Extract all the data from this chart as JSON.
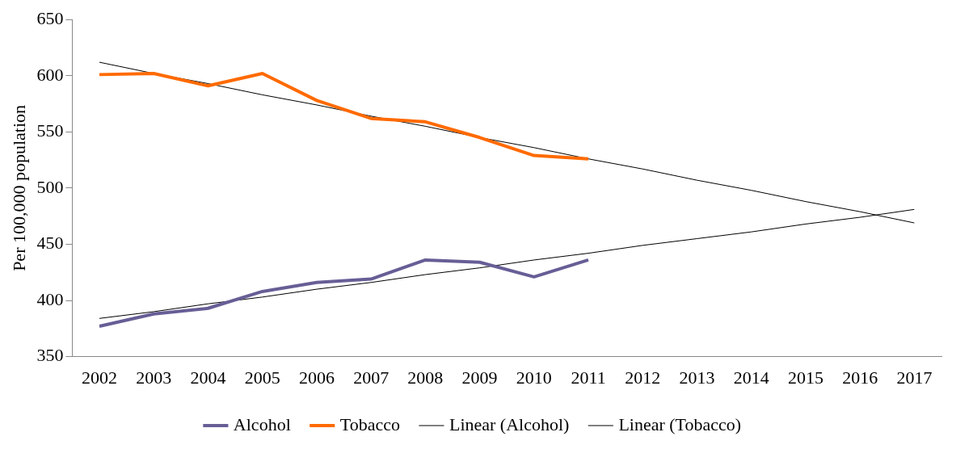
{
  "chart_data": {
    "type": "line",
    "ylabel": "Per 100,000 population",
    "categories": [
      "2002",
      "2003",
      "2004",
      "2005",
      "2006",
      "2007",
      "2008",
      "2009",
      "2010",
      "2011",
      "2012",
      "2013",
      "2014",
      "2015",
      "2016",
      "2017"
    ],
    "series": [
      {
        "name": "Alcohol",
        "color": "#675e96",
        "values": [
          377,
          388,
          393,
          408,
          416,
          419,
          436,
          434,
          421,
          436,
          null,
          null,
          null,
          null,
          null,
          null
        ]
      },
      {
        "name": "Tobacco",
        "color": "#ff6a00",
        "values": [
          601,
          602,
          591,
          602,
          578,
          562,
          559,
          545,
          529,
          526,
          null,
          null,
          null,
          null,
          null,
          null
        ]
      },
      {
        "name": "Linear (Alcohol)",
        "type": "line",
        "color": "#000000",
        "values": [
          384,
          390,
          397,
          403,
          410,
          416,
          423,
          429,
          436,
          442,
          449,
          455,
          461,
          468,
          474,
          481
        ]
      },
      {
        "name": "Linear (Tobacco)",
        "type": "line",
        "color": "#000000",
        "values": [
          612,
          602,
          593,
          583,
          574,
          564,
          555,
          545,
          536,
          526,
          517,
          507,
          498,
          488,
          479,
          469
        ]
      }
    ],
    "ylim": [
      350,
      650
    ],
    "yticks": [
      350,
      400,
      450,
      500,
      550,
      600,
      650
    ],
    "grid": false,
    "legend": "bottom",
    "marker": "none",
    "line_style": "solid"
  }
}
